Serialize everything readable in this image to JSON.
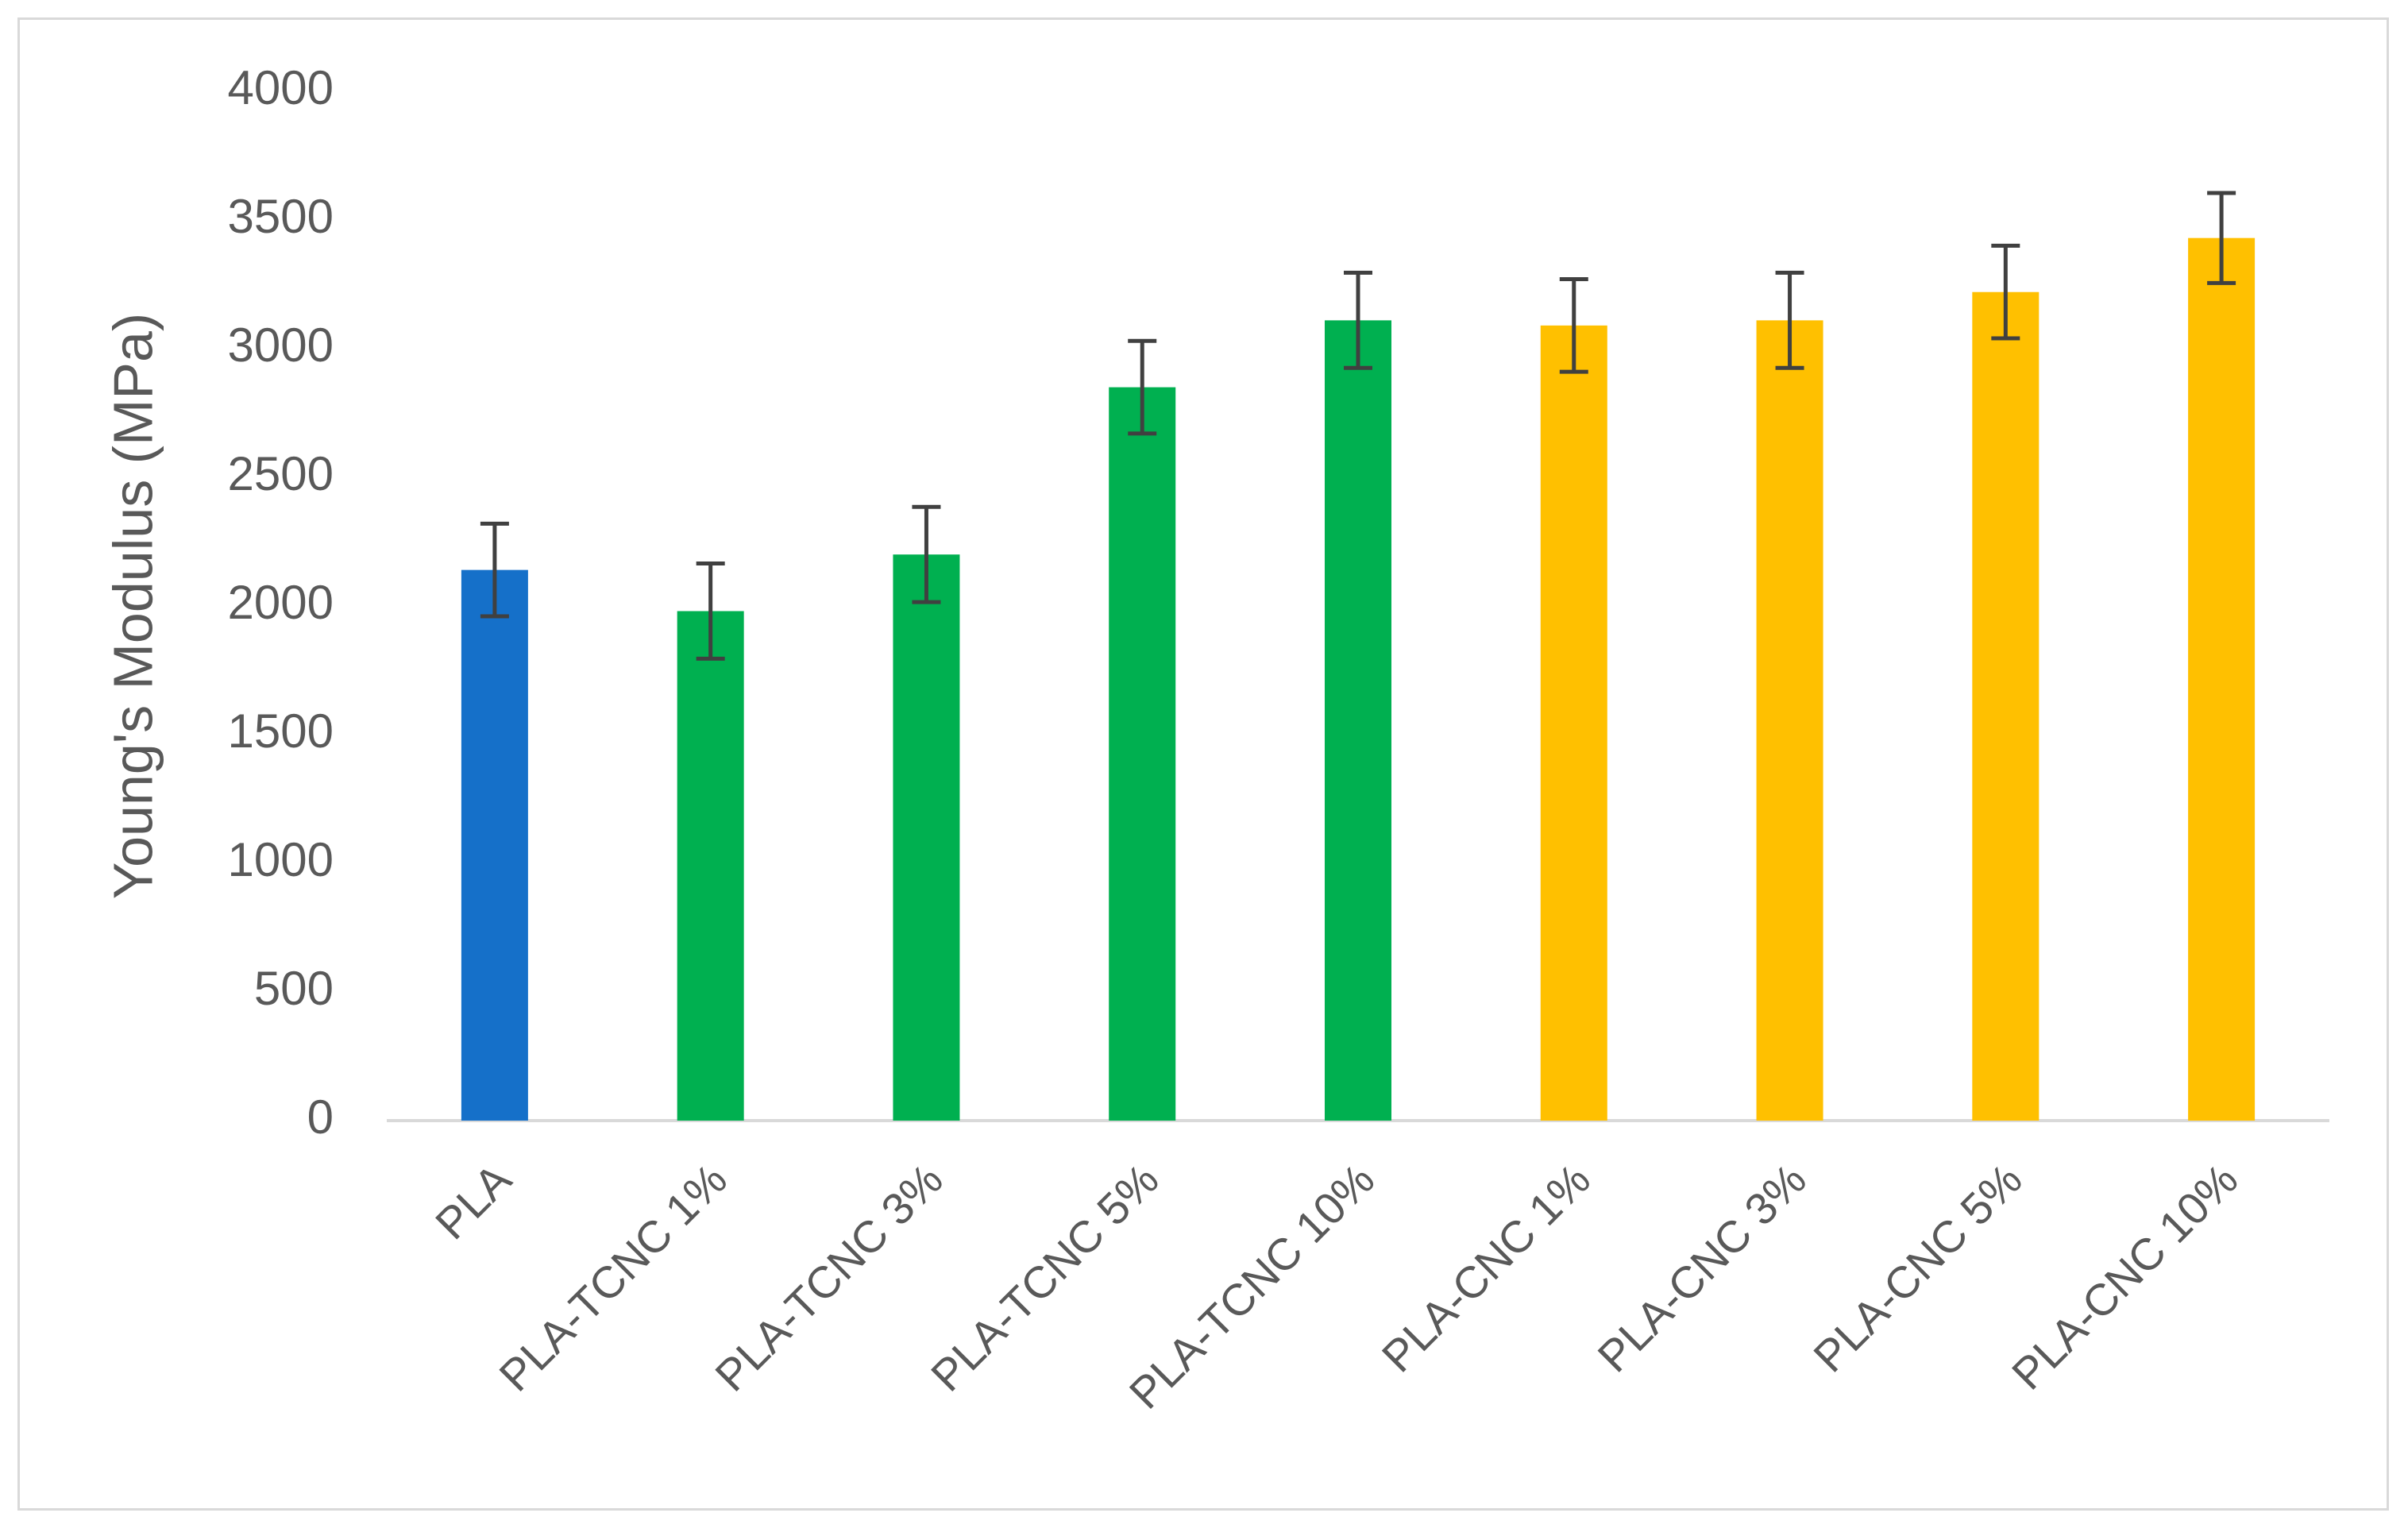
{
  "chart_data": {
    "type": "bar",
    "title": "",
    "xlabel": "",
    "ylabel": "Young's Modulus (MPa)",
    "ylim": [
      0,
      4000
    ],
    "yticks": [
      0,
      500,
      1000,
      1500,
      2000,
      2500,
      3000,
      3500,
      4000
    ],
    "grid": false,
    "legend": "none",
    "categories": [
      "PLA",
      "PLA-TCNC 1%",
      "PLA-TCNC 3%",
      "PLA-TCNC 5%",
      "PLA-TCNC 10%",
      "PLA-CNC 1%",
      "PLA-CNC 3%",
      "PLA-CNC 5%",
      "PLA-CNC 10%"
    ],
    "values": [
      2140,
      1980,
      2200,
      2850,
      3110,
      3090,
      3110,
      3220,
      3430
    ],
    "error": [
      180,
      185,
      185,
      180,
      185,
      180,
      185,
      180,
      175
    ],
    "bar_colors": [
      "#1570c9",
      "#00b050",
      "#00b050",
      "#00b050",
      "#00b050",
      "#ffc000",
      "#ffc000",
      "#ffc000",
      "#ffc000"
    ],
    "error_bar_color": "#404040",
    "axis_color": "#d9d9d9",
    "text_color": "#595959"
  }
}
